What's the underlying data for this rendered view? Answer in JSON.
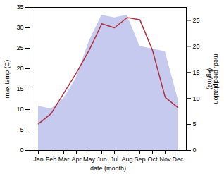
{
  "chart_data": {
    "type": "line",
    "categories": [
      "Jan",
      "Feb",
      "Mar",
      "Apr",
      "May",
      "Jun",
      "Jul",
      "Aug",
      "Sep",
      "Oct",
      "Nov",
      "Dec"
    ],
    "xlabel": "date (month)",
    "ylabel": "max temp (C)",
    "y2label": "med. precipitation\n(kg/m2)",
    "series": [
      {
        "type": "area",
        "axis": "y2",
        "color": "#c5caee",
        "values": [
          8.5,
          8.0,
          10.0,
          14.0,
          21.0,
          26.0,
          25.5,
          26.0,
          20.0,
          19.5,
          19.0,
          10.0
        ]
      },
      {
        "type": "line",
        "color": "#b03040",
        "values": [
          6.5,
          9.0,
          14.0,
          19.0,
          24.5,
          31.0,
          30.0,
          32.5,
          32.0,
          24.5,
          13.0,
          10.5
        ]
      }
    ],
    "ylim": [
      0,
      35
    ],
    "yticks": [
      0,
      5,
      10,
      15,
      20,
      25,
      30,
      35
    ],
    "y2lim": [
      0,
      27.5
    ],
    "y2ticks": [
      0,
      5,
      10,
      15,
      20,
      25
    ]
  }
}
